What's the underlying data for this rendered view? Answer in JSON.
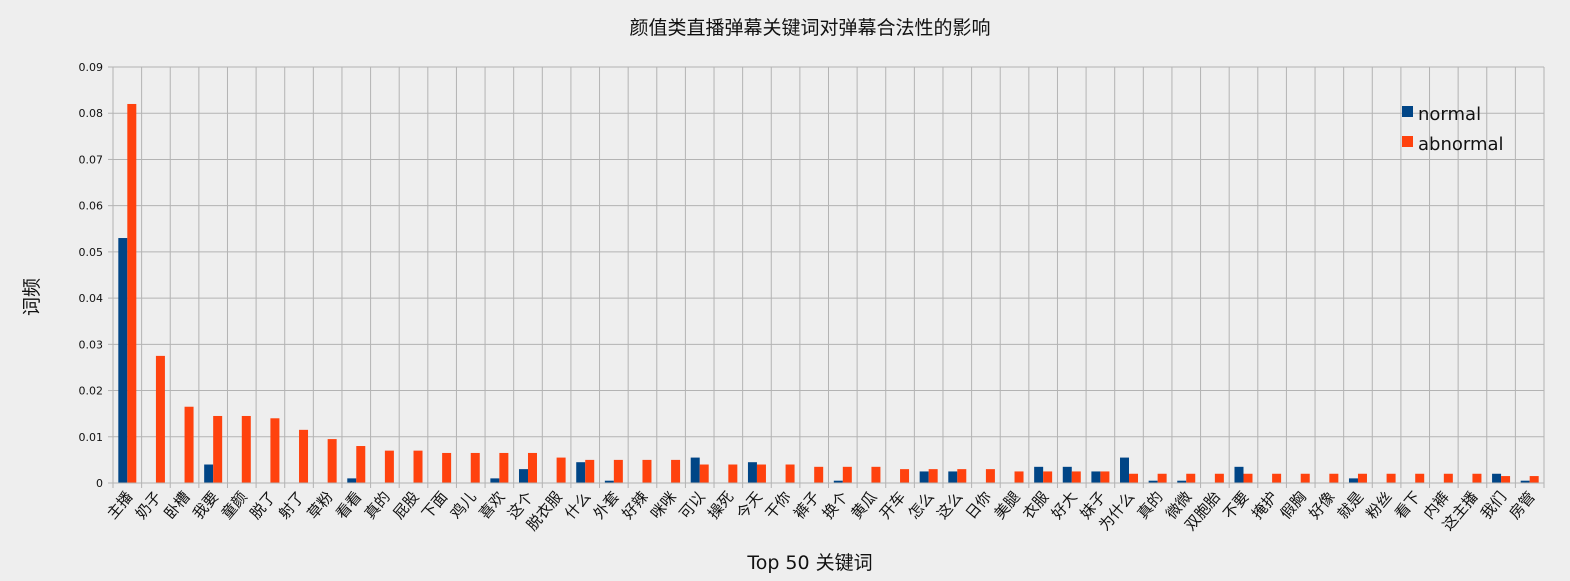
{
  "chart_data": {
    "type": "bar",
    "title": "颜值类直播弹幕关键词对弹幕合法性的影响",
    "xlabel": "Top 50  关键词",
    "ylabel": "词频",
    "ylim": [
      0,
      0.09
    ],
    "yticks": [
      "0",
      "0.01",
      "0.02",
      "0.03",
      "0.04",
      "0.05",
      "0.06",
      "0.07",
      "0.08",
      "0.09"
    ],
    "grid": true,
    "legend_position": "top-right",
    "categories": [
      "主播",
      "奶子",
      "卧槽",
      "我要",
      "童颜",
      "脱了",
      "射了",
      "草粉",
      "看看",
      "真的",
      "屁股",
      "下面",
      "鸡儿",
      "喜欢",
      "这个",
      "脱衣服",
      "什么",
      "外套",
      "好辣",
      "咪咪",
      "可以",
      "操死",
      "今天",
      "干你",
      "裤子",
      "换个",
      "黄瓜",
      "开车",
      "怎么",
      "这么",
      "日你",
      "美腿",
      "衣服",
      "好大",
      "妹子",
      "为什么",
      "真的",
      "微微",
      "双胞胎",
      "不要",
      "掩护",
      "假胸",
      "好像",
      "就是",
      "粉丝",
      "看下",
      "内裤",
      "这主播",
      "我们",
      "房管"
    ],
    "series": [
      {
        "name": "normal",
        "color": "#004586",
        "values": [
          0.053,
          0,
          0,
          0.004,
          0,
          0,
          0,
          0,
          0.001,
          0,
          0,
          0,
          0,
          0.001,
          0.003,
          0,
          0.0045,
          0.0005,
          0,
          0,
          0.0055,
          0,
          0.0045,
          0,
          0,
          0.0005,
          0,
          0,
          0.0025,
          0.0025,
          0,
          0,
          0.0035,
          0.0035,
          0.0025,
          0.0055,
          0.0005,
          0.0005,
          0,
          0.0035,
          0,
          0,
          0,
          0.001,
          0,
          0,
          0,
          0,
          0.002,
          0.0005
        ]
      },
      {
        "name": "abnormal",
        "color": "#ff420e",
        "values": [
          0.082,
          0.0275,
          0.0165,
          0.0145,
          0.0145,
          0.014,
          0.0115,
          0.0095,
          0.008,
          0.007,
          0.007,
          0.0065,
          0.0065,
          0.0065,
          0.0065,
          0.0055,
          0.005,
          0.005,
          0.005,
          0.005,
          0.004,
          0.004,
          0.004,
          0.004,
          0.0035,
          0.0035,
          0.0035,
          0.003,
          0.003,
          0.003,
          0.003,
          0.0025,
          0.0025,
          0.0025,
          0.0025,
          0.002,
          0.002,
          0.002,
          0.002,
          0.002,
          0.002,
          0.002,
          0.002,
          0.002,
          0.002,
          0.002,
          0.002,
          0.002,
          0.0015,
          0.0015
        ]
      }
    ]
  }
}
